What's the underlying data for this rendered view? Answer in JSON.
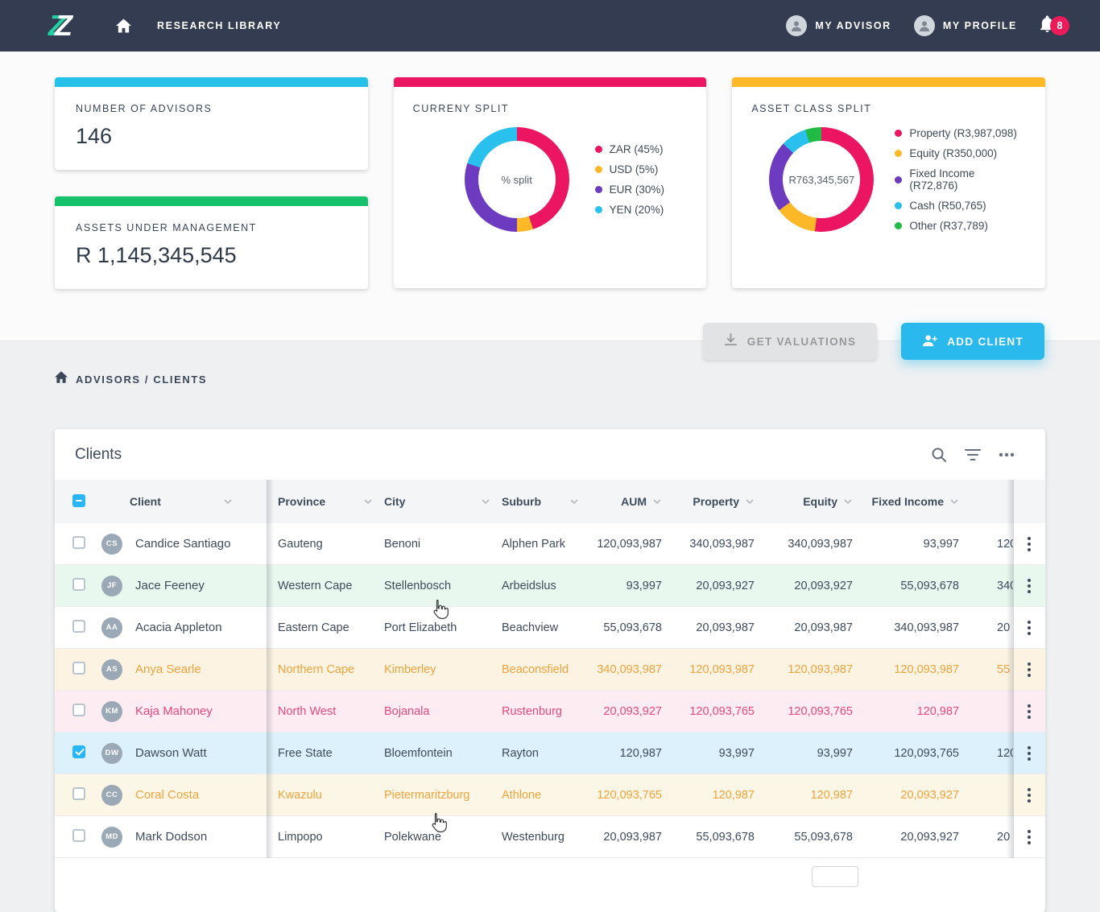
{
  "navbar": {
    "brand": {
      "z1": "Z",
      "z2": "Z"
    },
    "nav_title": "RESEARCH LIBRARY",
    "my_advisor": "MY ADVISOR",
    "my_profile": "MY PROFILE",
    "notifications": "8"
  },
  "accents": {
    "advisors": "#26c1e9",
    "aum": "#15c26b",
    "currency": "#ec1562",
    "asset_class": "#fcb826"
  },
  "brand_colors": {
    "primary_cyan": "#29b9ec",
    "checkbox_blue": "#29b6f6",
    "notification_pink": "#ec1c5a",
    "logo_teal": "#1fd1a5"
  },
  "stats": {
    "advisors": {
      "title": "NUMBER OF ADVISORS",
      "value": "146"
    },
    "aum": {
      "title": "ASSETS UNDER MANAGEMENT",
      "value": "R 1,145,345,545"
    }
  },
  "chart_data": [
    {
      "type": "pie",
      "title": "CURRENY SPLIT",
      "center_label": "% split",
      "legend_position": "right",
      "segments": [
        {
          "label": "ZAR (45%)",
          "value": 45,
          "color": "#ec1562"
        },
        {
          "label": "USD (5%)",
          "value": 5,
          "color": "#fcb826"
        },
        {
          "label": "EUR (30%)",
          "value": 30,
          "color": "#6d3bbf"
        },
        {
          "label": "YEN (20%)",
          "value": 20,
          "color": "#29c0ee"
        }
      ]
    },
    {
      "type": "pie",
      "title": "ASSET CLASS SPLIT",
      "center_label": "R763,345,567",
      "legend_position": "right",
      "segments": [
        {
          "label": "Property (R3,987,098)",
          "value": 52,
          "color": "#ec1562"
        },
        {
          "label": "Equity (R350,000)",
          "value": 13,
          "color": "#fcb826"
        },
        {
          "label": "Fixed Income (R72,876)",
          "value": 22,
          "color": "#6d3bbf"
        },
        {
          "label": "Cash (R50,765)",
          "value": 8,
          "color": "#29c0ee"
        },
        {
          "label": "Other (R37,789)",
          "value": 5,
          "color": "#21ba45"
        }
      ]
    }
  ],
  "actions": {
    "get_valuations": "GET VALUATIONS",
    "add_client": "ADD CLIENT"
  },
  "breadcrumb": {
    "path": "ADVISORS / CLIENTS"
  },
  "table": {
    "title": "Clients",
    "columns": [
      "Client",
      "Province",
      "City",
      "Suburb",
      "AUM",
      "Property",
      "Equity",
      "Fixed Income"
    ],
    "rows": [
      {
        "name": "Candice Santiago",
        "initials": "CS",
        "province": "Gauteng",
        "city": "Benoni",
        "suburb": "Alphen Park",
        "aum": "120,093,987",
        "property": "340,093,987",
        "equity": "340,093,987",
        "fixed_income": "93,997",
        "next_partial": "120",
        "tint": "none",
        "checked": false
      },
      {
        "name": "Jace Feeney",
        "initials": "JF",
        "province": "Western Cape",
        "city": "Stellenbosch",
        "suburb": "Arbeidslus",
        "aum": "93,997",
        "property": "20,093,927",
        "equity": "20,093,927",
        "fixed_income": "55,093,678",
        "next_partial": "340",
        "tint": "green",
        "checked": false
      },
      {
        "name": "Acacia Appleton",
        "initials": "AA",
        "province": "Eastern Cape",
        "city": "Port Elizabeth",
        "suburb": "Beachview",
        "aum": "55,093,678",
        "property": "20,093,987",
        "equity": "20,093,987",
        "fixed_income": "340,093,987",
        "next_partial": "20",
        "tint": "none",
        "checked": false
      },
      {
        "name": "Anya Searle",
        "initials": "AS",
        "province": "Northern Cape",
        "city": "Kimberley",
        "suburb": "Beaconsfield",
        "aum": "340,093,987",
        "property": "120,093,987",
        "equity": "120,093,987",
        "fixed_income": "120,093,987",
        "next_partial": "55",
        "tint": "amber",
        "checked": false
      },
      {
        "name": "Kaja Mahoney",
        "initials": "KM",
        "province": "North West",
        "city": "Bojanala",
        "suburb": "Rustenburg",
        "aum": "20,093,927",
        "property": "120,093,765",
        "equity": "120,093,765",
        "fixed_income": "120,987",
        "next_partial": "",
        "tint": "pink",
        "checked": false
      },
      {
        "name": "Dawson Watt",
        "initials": "DW",
        "province": "Free State",
        "city": "Bloemfontein",
        "suburb": "Rayton",
        "aum": "120,987",
        "property": "93,997",
        "equity": "93,997",
        "fixed_income": "120,093,765",
        "next_partial": "120",
        "tint": "blue",
        "checked": true
      },
      {
        "name": "Coral Costa",
        "initials": "CC",
        "province": "Kwazulu",
        "city": "Pietermaritzburg",
        "suburb": "Athlone",
        "aum": "120,093,765",
        "property": "120,987",
        "equity": "120,987",
        "fixed_income": "20,093,927",
        "next_partial": "",
        "tint": "cream",
        "checked": false
      },
      {
        "name": "Mark Dodson",
        "initials": "MD",
        "province": "Limpopo",
        "city": "Polekwane",
        "suburb": "Westenburg",
        "aum": "20,093,987",
        "property": "55,093,678",
        "equity": "55,093,678",
        "fixed_income": "20,093,927",
        "next_partial": "20",
        "tint": "none",
        "checked": false
      }
    ]
  }
}
